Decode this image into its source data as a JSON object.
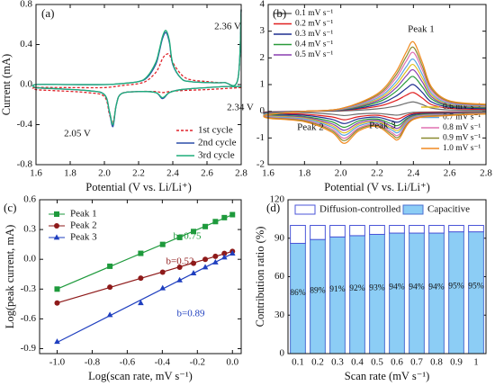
{
  "chart_data": [
    {
      "type": "line",
      "label": "(a)",
      "xlabel": "Potential (V vs. Li/Li⁺)",
      "ylabel": "Current (mA)",
      "xlim": [
        1.6,
        2.8
      ],
      "xticks": [
        1.6,
        1.8,
        {
          "value": 2.0,
          "label": "2.0"
        },
        2.2,
        2.4,
        2.6,
        2.8
      ],
      "ylim": [
        -0.8,
        0.8
      ],
      "yticks": [
        -0.8,
        -0.4,
        {
          "value": 0,
          "label": "0.0"
        },
        0.4,
        0.8
      ],
      "legend": "lower right",
      "annotations": [
        "2.36 V",
        "2.34 V",
        "2.05 V"
      ],
      "x": [
        2.8,
        2.7,
        2.6,
        2.45,
        2.38,
        2.34,
        2.3,
        2.2,
        2.1,
        2.07,
        2.05,
        2.03,
        2.0,
        1.9,
        1.7,
        1.6,
        1.6,
        1.8,
        2.0,
        2.1,
        2.2,
        2.25,
        2.3,
        2.32,
        2.34,
        2.36,
        2.38,
        2.4,
        2.45,
        2.5,
        2.6,
        2.7,
        2.78,
        2.8
      ],
      "series": [
        {
          "name": "1st cycle",
          "color": "#e0242b",
          "dashed": true,
          "values": [
            -0.03,
            -0.04,
            -0.05,
            -0.06,
            -0.07,
            -0.08,
            -0.07,
            -0.07,
            -0.09,
            -0.2,
            -0.38,
            -0.3,
            -0.12,
            -0.08,
            -0.06,
            -0.05,
            -0.03,
            -0.03,
            -0.03,
            -0.01,
            0.01,
            0.04,
            0.12,
            0.18,
            0.26,
            0.3,
            0.3,
            0.22,
            0.1,
            0.05,
            0.03,
            0.02,
            0.05,
            0.75
          ]
        },
        {
          "name": "2nd cycle",
          "color": "#2b4fa8",
          "values": [
            -0.02,
            -0.02,
            -0.03,
            -0.05,
            -0.08,
            -0.14,
            -0.08,
            -0.07,
            -0.09,
            -0.2,
            -0.42,
            -0.28,
            -0.1,
            -0.06,
            -0.04,
            -0.03,
            0.0,
            0.0,
            0.0,
            0.01,
            0.03,
            0.07,
            0.2,
            0.32,
            0.46,
            0.52,
            0.42,
            0.2,
            0.06,
            0.03,
            0.02,
            0.02,
            0.05,
            0.75
          ]
        },
        {
          "name": "3rd cycle",
          "color": "#1fae7a",
          "values": [
            -0.02,
            -0.02,
            -0.03,
            -0.05,
            -0.08,
            -0.13,
            -0.08,
            -0.07,
            -0.09,
            -0.2,
            -0.4,
            -0.27,
            -0.1,
            -0.06,
            -0.04,
            -0.03,
            0.0,
            0.0,
            0.0,
            0.01,
            0.03,
            0.08,
            0.22,
            0.34,
            0.48,
            0.54,
            0.44,
            0.21,
            0.06,
            0.03,
            0.02,
            0.02,
            0.05,
            0.75
          ]
        }
      ]
    },
    {
      "type": "line",
      "label": "(b)",
      "xlabel": "Potential (V vs. Li/Li⁺)",
      "xlim": [
        1.6,
        2.8
      ],
      "xticks": [
        1.6,
        1.8,
        {
          "value": 2.0,
          "label": "2.0"
        },
        2.2,
        2.4,
        2.6,
        2.8
      ],
      "ylim": [
        -2,
        4
      ],
      "yticks": [
        -2,
        -1,
        0,
        1,
        2,
        3,
        4
      ],
      "legend": "upper left",
      "annotations": [
        "Peak 1",
        "Peak 2",
        "Peak 3"
      ],
      "x": [
        2.8,
        2.6,
        2.4,
        2.32,
        2.28,
        2.2,
        2.1,
        2.02,
        1.95,
        1.8,
        1.6,
        1.6,
        1.8,
        2.0,
        2.2,
        2.3,
        2.36,
        2.4,
        2.45,
        2.5,
        2.6,
        2.8
      ],
      "series": [
        {
          "name": "0.1 mV s⁻¹",
          "color": "#6e6e6e",
          "values": [
            -0.01,
            -0.02,
            -0.04,
            -0.14,
            -0.13,
            -0.08,
            -0.1,
            -0.16,
            -0.11,
            -0.05,
            -0.04,
            -0.02,
            0,
            0.01,
            0.09,
            0.19,
            0.3,
            0.35,
            0.25,
            0.12,
            0.05,
            0.04
          ]
        },
        {
          "name": "0.2 mV s⁻¹",
          "color": "#e02020",
          "values": [
            -0.03,
            -0.04,
            -0.08,
            -0.28,
            -0.25,
            -0.15,
            -0.2,
            -0.32,
            -0.21,
            -0.11,
            -0.07,
            -0.04,
            0,
            0.03,
            0.18,
            0.39,
            0.6,
            0.7,
            0.49,
            0.25,
            0.11,
            0.07
          ]
        },
        {
          "name": "0.3 mV s⁻¹",
          "color": "#1f2f8f",
          "values": [
            -0.04,
            -0.06,
            -0.12,
            -0.4,
            -0.36,
            -0.22,
            -0.28,
            -0.46,
            -0.3,
            -0.15,
            -0.1,
            -0.05,
            0,
            0.04,
            0.25,
            0.55,
            0.85,
            1.0,
            0.7,
            0.35,
            0.15,
            0.1
          ]
        },
        {
          "name": "0.4 mV s⁻¹",
          "color": "#2a9a3a",
          "values": [
            -0.05,
            -0.08,
            -0.16,
            -0.52,
            -0.47,
            -0.29,
            -0.36,
            -0.6,
            -0.39,
            -0.2,
            -0.13,
            -0.07,
            0,
            0.05,
            0.33,
            0.72,
            1.11,
            1.3,
            0.91,
            0.46,
            0.2,
            0.13
          ]
        },
        {
          "name": "0.5 mV s⁻¹",
          "color": "#8a3fb0",
          "values": [
            -0.06,
            -0.09,
            -0.19,
            -0.62,
            -0.56,
            -0.34,
            -0.43,
            -0.71,
            -0.47,
            -0.23,
            -0.16,
            -0.08,
            0,
            0.06,
            0.39,
            0.85,
            1.32,
            1.55,
            1.09,
            0.54,
            0.23,
            0.16
          ]
        },
        {
          "name": "0.6 mV s⁻¹",
          "color": "#e0c020",
          "values": [
            -0.07,
            -0.11,
            -0.21,
            -0.7,
            -0.63,
            -0.39,
            -0.49,
            -0.81,
            -0.53,
            -0.26,
            -0.18,
            -0.09,
            0,
            0.07,
            0.44,
            0.96,
            1.49,
            1.75,
            1.23,
            0.61,
            0.26,
            0.18
          ]
        },
        {
          "name": "0.7 mV s⁻¹",
          "color": "#5aa6e0",
          "values": [
            -0.08,
            -0.12,
            -0.23,
            -0.78,
            -0.7,
            -0.43,
            -0.55,
            -0.9,
            -0.59,
            -0.29,
            -0.2,
            -0.1,
            0,
            0.08,
            0.49,
            1.07,
            1.66,
            1.95,
            1.37,
            0.68,
            0.29,
            0.2
          ]
        },
        {
          "name": "0.8 mV s⁻¹",
          "color": "#e070b0",
          "values": [
            -0.09,
            -0.13,
            -0.26,
            -0.88,
            -0.79,
            -0.48,
            -0.62,
            -1.01,
            -0.66,
            -0.33,
            -0.22,
            -0.11,
            0,
            0.09,
            0.55,
            1.21,
            1.87,
            2.2,
            1.54,
            0.77,
            0.33,
            0.22
          ]
        },
        {
          "name": "0.9 mV s⁻¹",
          "color": "#8a8a30",
          "values": [
            -0.1,
            -0.14,
            -0.29,
            -0.96,
            -0.86,
            -0.53,
            -0.67,
            -1.1,
            -0.72,
            -0.36,
            -0.24,
            -0.12,
            0,
            0.1,
            0.6,
            1.32,
            2.04,
            2.4,
            1.68,
            0.84,
            0.36,
            0.24
          ]
        },
        {
          "name": "1.0 mV s⁻¹",
          "color": "#f08a20",
          "values": [
            -0.1,
            -0.16,
            -0.31,
            -1.04,
            -0.94,
            -0.57,
            -0.73,
            -1.2,
            -0.78,
            -0.39,
            -0.26,
            -0.13,
            0,
            0.1,
            0.65,
            1.43,
            2.21,
            2.6,
            1.82,
            0.91,
            0.39,
            0.26
          ]
        }
      ]
    },
    {
      "type": "scatter",
      "label": "(c)",
      "xlabel": "Log(scan rate, mV s⁻¹)",
      "ylabel": "Log(peak current, mA)",
      "xlim": [
        -1.1,
        0.05
      ],
      "xticks": [
        {
          "value": -1.0,
          "label": "-1.0"
        },
        -0.8,
        -0.6,
        -0.4,
        -0.2,
        {
          "value": 0,
          "label": "0.0"
        }
      ],
      "ylim": [
        -0.95,
        0.6
      ],
      "yticks": [
        -0.9,
        -0.6,
        -0.3,
        {
          "value": 0,
          "label": "0.0"
        },
        0.3,
        0.6
      ],
      "legend": "upper left",
      "fit": true,
      "annotations": [
        "b=0.75",
        "b=0.52",
        "b=0.89"
      ],
      "x": [
        -1,
        -0.699,
        -0.523,
        -0.398,
        -0.301,
        -0.222,
        -0.155,
        -0.097,
        -0.046,
        0
      ],
      "series": [
        {
          "name": "Peak 1",
          "color": "#1e9a3c",
          "marker": "square",
          "values": [
            -0.3,
            -0.07,
            0.06,
            0.15,
            0.22,
            0.28,
            0.33,
            0.38,
            0.42,
            0.45
          ]
        },
        {
          "name": "Peak 2",
          "color": "#8e1a1a",
          "marker": "circle",
          "values": [
            -0.44,
            -0.28,
            -0.19,
            -0.13,
            -0.08,
            -0.04,
            0.0,
            0.03,
            0.06,
            0.08
          ]
        },
        {
          "name": "Peak 3",
          "color": "#1f3fbf",
          "marker": "triangle",
          "values": [
            -0.83,
            -0.56,
            -0.44,
            -0.29,
            -0.21,
            -0.14,
            -0.08,
            -0.03,
            0.02,
            0.06
          ]
        }
      ]
    },
    {
      "type": "bar",
      "label": "(d)",
      "stacked": true,
      "xlabel": "Scan rate (mV s⁻¹)",
      "ylabel": "Contribution ratio (%)",
      "categories": [
        "0.1",
        "0.2",
        "0.3",
        "0.4",
        "0.5",
        "0.6",
        "0.7",
        "0.8",
        "0.9",
        "1"
      ],
      "ylim": [
        0,
        120
      ],
      "yticks": [
        0,
        30,
        60,
        90,
        120
      ],
      "legend": "upper center",
      "series": [
        {
          "name": "Diffusion-controlled",
          "color": "#ffffff",
          "edge": "#4b56d8",
          "values": [
            14,
            11,
            9,
            8,
            7,
            6,
            6,
            6,
            5,
            5
          ]
        },
        {
          "name": "Capacitive",
          "color": "#8ccdf5",
          "edge": "#4b6fd1",
          "values": [
            86,
            89,
            91,
            92,
            93,
            94,
            94,
            94,
            95,
            95
          ],
          "value_labels": [
            "86%",
            "89%",
            "91%",
            "92%",
            "93%",
            "94%",
            "94%",
            "94%",
            "95%",
            "95%"
          ]
        }
      ]
    }
  ]
}
